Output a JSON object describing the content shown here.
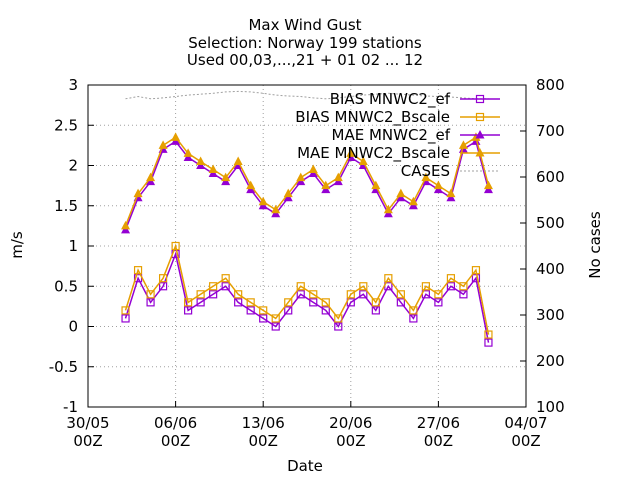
{
  "chart_data": {
    "type": "line",
    "title": "Max Wind Gust",
    "subtitle_lines": [
      "Selection: Norway    199 stations",
      "Used 00,03,...,21 + 01 02 ... 12"
    ],
    "xlabel": "Date",
    "ylabel": "m/s",
    "y2label": "No cases",
    "ylim": [
      -1,
      3
    ],
    "y2lim": [
      100,
      800
    ],
    "yticks": [
      "-1",
      "-0.5",
      "0",
      "0.5",
      "1",
      "1.5",
      "2",
      "2.5",
      "3"
    ],
    "y2ticks": [
      "100",
      "200",
      "300",
      "400",
      "500",
      "600",
      "700",
      "800"
    ],
    "xtick_labels": [
      {
        "line1": "30/05",
        "line2": "00Z"
      },
      {
        "line1": "06/06",
        "line2": "00Z"
      },
      {
        "line1": "13/06",
        "line2": "00Z"
      },
      {
        "line1": "20/06",
        "line2": "00Z"
      },
      {
        "line1": "27/06",
        "line2": "00Z"
      },
      {
        "line1": "04/07",
        "line2": "00Z"
      }
    ],
    "grid": true,
    "legend_position": "top-right",
    "x_dates": [
      "02/06",
      "03/06",
      "04/06",
      "05/06",
      "06/06",
      "07/06",
      "08/06",
      "09/06",
      "10/06",
      "11/06",
      "12/06",
      "13/06",
      "14/06",
      "15/06",
      "16/06",
      "17/06",
      "18/06",
      "19/06",
      "20/06",
      "21/06",
      "22/06",
      "23/06",
      "24/06",
      "25/06",
      "26/06",
      "27/06",
      "28/06",
      "29/06",
      "30/06",
      "01/07"
    ],
    "series": [
      {
        "name": "BIAS MNWC2_ef",
        "legend_label": "BIAS MNWC2_ef",
        "axis": "y1",
        "color": "#9400d3",
        "marker": "open-square",
        "values": [
          0.1,
          0.6,
          0.3,
          0.5,
          0.9,
          0.2,
          0.3,
          0.4,
          0.5,
          0.3,
          0.2,
          0.1,
          0.0,
          0.2,
          0.4,
          0.3,
          0.2,
          0.0,
          0.3,
          0.4,
          0.2,
          0.5,
          0.3,
          0.1,
          0.4,
          0.3,
          0.5,
          0.4,
          0.6,
          -0.2
        ]
      },
      {
        "name": "BIAS MNWC2_Bscale",
        "legend_label": "BIAS MNWC2_Bscale",
        "axis": "y1",
        "color": "#e69f00",
        "marker": "open-square",
        "values": [
          0.2,
          0.7,
          0.4,
          0.6,
          1.0,
          0.3,
          0.4,
          0.5,
          0.6,
          0.4,
          0.3,
          0.2,
          0.1,
          0.3,
          0.5,
          0.4,
          0.3,
          0.1,
          0.4,
          0.5,
          0.3,
          0.6,
          0.4,
          0.2,
          0.5,
          0.4,
          0.6,
          0.5,
          0.7,
          -0.1
        ]
      },
      {
        "name": "MAE MNWC2_ef",
        "legend_label": "MAE MNWC2_ef",
        "axis": "y1",
        "color": "#9400d3",
        "marker": "filled-triangle",
        "values": [
          1.2,
          1.6,
          1.8,
          2.2,
          2.3,
          2.1,
          2.0,
          1.9,
          1.8,
          2.0,
          1.7,
          1.5,
          1.4,
          1.6,
          1.8,
          1.9,
          1.7,
          1.8,
          2.1,
          2.0,
          1.7,
          1.4,
          1.6,
          1.5,
          1.8,
          1.7,
          1.6,
          2.2,
          2.3,
          1.7
        ]
      },
      {
        "name": "MAE MNWC2_Bscale",
        "legend_label": "MAE MNWC2_Bscale",
        "axis": "y1",
        "color": "#e69f00",
        "marker": "filled-triangle",
        "values": [
          1.25,
          1.65,
          1.85,
          2.25,
          2.35,
          2.15,
          2.05,
          1.95,
          1.85,
          2.05,
          1.75,
          1.55,
          1.45,
          1.65,
          1.85,
          1.95,
          1.75,
          1.85,
          2.15,
          2.05,
          1.75,
          1.45,
          1.65,
          1.55,
          1.85,
          1.75,
          1.65,
          2.25,
          2.35,
          1.75
        ]
      },
      {
        "name": "CASES",
        "legend_label": "CASES",
        "axis": "y2",
        "color": "#a0a0a0",
        "marker": "none",
        "values": [
          770,
          775,
          770,
          772,
          775,
          778,
          780,
          782,
          785,
          786,
          785,
          782,
          778,
          776,
          775,
          772,
          770,
          772,
          775,
          778,
          780,
          782,
          780,
          778,
          776,
          775,
          774,
          772,
          770,
          770
        ]
      }
    ]
  }
}
